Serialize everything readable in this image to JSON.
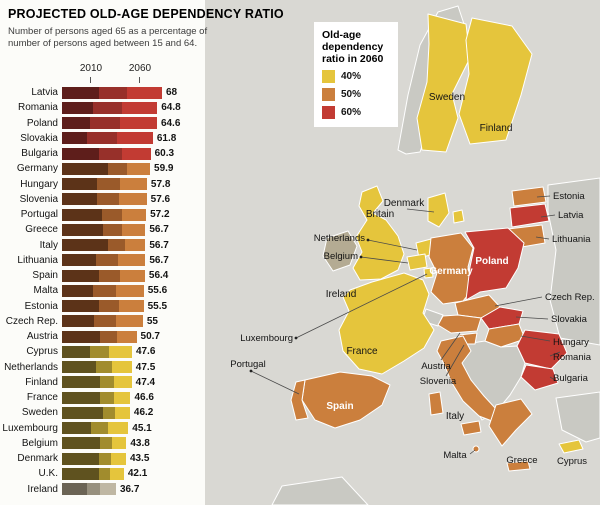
{
  "header": {
    "title": "PROJECTED OLD-AGE DEPENDENCY RATIO",
    "subtitle_line1": "Number of persons aged 65 as a percentage of",
    "subtitle_line2": "number of persons aged between 15 and 64.",
    "axis_2010": "2010",
    "axis_2060": "2060"
  },
  "legend": {
    "title_lines": [
      "Old-age",
      "dependency",
      "ratio in 2060"
    ],
    "items": [
      {
        "label": "40%",
        "color": "#e5c53c"
      },
      {
        "label": "50%",
        "color": "#cb7f3d"
      },
      {
        "label": "60%",
        "color": "#c23b33"
      }
    ]
  },
  "colors": {
    "map_sea": "#d9d8d3",
    "map_noneu": "#c9c9c3",
    "map_40": "#e5c53c",
    "map_50": "#cb7f3d",
    "map_60": "#c23b33",
    "map_low": "#b4ab93",
    "bar_dark_40": "#5f521f",
    "bar_mid_40": "#a18c2d",
    "bar_main_40": "#e5c53c",
    "bar_dark_50": "#5c3318",
    "bar_mid_50": "#9a5a2a",
    "bar_main_50": "#cb7f3d",
    "bar_dark_60": "#5e1e1b",
    "bar_mid_60": "#97302a",
    "bar_main_60": "#c23b33",
    "bar_dark_low": "#6b6455",
    "bar_mid_low": "#97907e",
    "bar_main_low": "#bfb7a3"
  },
  "chart_data": {
    "type": "bar",
    "orientation": "horizontal",
    "title": "PROJECTED OLD-AGE DEPENDENCY RATIO",
    "series": [
      "2010",
      "2060"
    ],
    "xlim": [
      0,
      70
    ],
    "encoding_note": "dark bar segment = 2010 value (estimated from graphic), full bar length = 2060 value (labeled); bar end color = 2060 category",
    "countries": [
      {
        "name": "Latvia",
        "label": "68",
        "value_2060": 68,
        "value_2010_est": 25,
        "category": "60"
      },
      {
        "name": "Romania",
        "label": "64.8",
        "value_2060": 64.8,
        "value_2010_est": 21,
        "category": "60"
      },
      {
        "name": "Poland",
        "label": "64.6",
        "value_2060": 64.6,
        "value_2010_est": 19,
        "category": "60"
      },
      {
        "name": "Slovakia",
        "label": "61.8",
        "value_2060": 61.8,
        "value_2010_est": 17,
        "category": "60"
      },
      {
        "name": "Bulgaria",
        "label": "60.3",
        "value_2060": 60.3,
        "value_2010_est": 25,
        "category": "60"
      },
      {
        "name": "Germany",
        "label": "59.9",
        "value_2060": 59.9,
        "value_2010_est": 31,
        "category": "50"
      },
      {
        "name": "Hungary",
        "label": "57.8",
        "value_2060": 57.8,
        "value_2010_est": 24,
        "category": "50"
      },
      {
        "name": "Slovenia",
        "label": "57.6",
        "value_2060": 57.6,
        "value_2010_est": 24,
        "category": "50"
      },
      {
        "name": "Portugal",
        "label": "57.2",
        "value_2060": 57.2,
        "value_2010_est": 27,
        "category": "50"
      },
      {
        "name": "Greece",
        "label": "56.7",
        "value_2060": 56.7,
        "value_2010_est": 28,
        "category": "50"
      },
      {
        "name": "Italy",
        "label": "56.7",
        "value_2060": 56.7,
        "value_2010_est": 31,
        "category": "50"
      },
      {
        "name": "Lithuania",
        "label": "56.7",
        "value_2060": 56.7,
        "value_2010_est": 23,
        "category": "50"
      },
      {
        "name": "Spain",
        "label": "56.4",
        "value_2060": 56.4,
        "value_2010_est": 25,
        "category": "50"
      },
      {
        "name": "Malta",
        "label": "55.6",
        "value_2060": 55.6,
        "value_2010_est": 21,
        "category": "50"
      },
      {
        "name": "Estonia",
        "label": "55.5",
        "value_2060": 55.5,
        "value_2010_est": 25,
        "category": "50"
      },
      {
        "name": "Czech Rep.",
        "label": "55",
        "value_2060": 55,
        "value_2010_est": 22,
        "category": "50"
      },
      {
        "name": "Austria",
        "label": "50.7",
        "value_2060": 50.7,
        "value_2010_est": 26,
        "category": "50"
      },
      {
        "name": "Cyprus",
        "label": "47.6",
        "value_2060": 47.6,
        "value_2010_est": 19,
        "category": "40"
      },
      {
        "name": "Netherlands",
        "label": "47.5",
        "value_2060": 47.5,
        "value_2010_est": 23,
        "category": "40"
      },
      {
        "name": "Finland",
        "label": "47.4",
        "value_2060": 47.4,
        "value_2010_est": 26,
        "category": "40"
      },
      {
        "name": "France",
        "label": "46.6",
        "value_2060": 46.6,
        "value_2010_est": 26,
        "category": "40"
      },
      {
        "name": "Sweden",
        "label": "46.2",
        "value_2060": 46.2,
        "value_2010_est": 28,
        "category": "40"
      },
      {
        "name": "Luxembourg",
        "label": "45.1",
        "value_2060": 45.1,
        "value_2010_est": 20,
        "category": "40"
      },
      {
        "name": "Belgium",
        "label": "43.8",
        "value_2060": 43.8,
        "value_2010_est": 26,
        "category": "40"
      },
      {
        "name": "Denmark",
        "label": "43.5",
        "value_2060": 43.5,
        "value_2010_est": 25,
        "category": "40"
      },
      {
        "name": "U.K.",
        "label": "42.1",
        "value_2060": 42.1,
        "value_2010_est": 25,
        "category": "40"
      },
      {
        "name": "Ireland",
        "label": "36.7",
        "value_2060": 36.7,
        "value_2010_est": 17,
        "category": "low"
      }
    ]
  },
  "map": {
    "labels": {
      "sweden": "Sweden",
      "finland": "Finland",
      "estonia": "Estonia",
      "latvia": "Latvia",
      "lithuania": "Lithuania",
      "britain": "Britain",
      "denmark": "Denmark",
      "netherlands": "Netherlands",
      "belgium": "Belgium",
      "luxembourg": "Luxembourg",
      "germany": "Germany",
      "poland": "Poland",
      "czech": "Czech Rep.",
      "slovakia": "Slovakia",
      "hungary": "Hungary",
      "romania": "Romania",
      "bulgaria": "Bulgaria",
      "ireland": "Ireland",
      "france": "France",
      "portugal": "Portugal",
      "spain": "Spain",
      "austria": "Austria",
      "slovenia": "Slovenia",
      "italy": "Italy",
      "malta": "Malta",
      "greece": "Greece",
      "cyprus": "Cyprus"
    }
  }
}
